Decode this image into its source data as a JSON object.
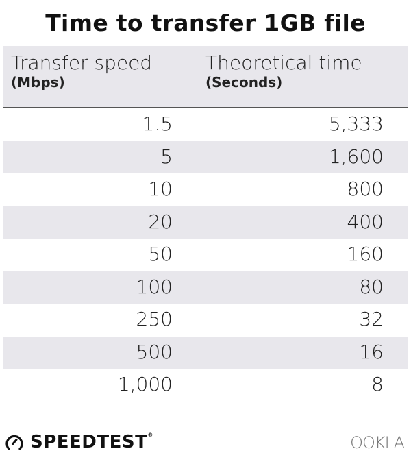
{
  "chart_data": {
    "type": "table",
    "title": "Time to transfer 1GB file",
    "columns": [
      {
        "label": "Transfer speed",
        "unit": "(Mbps)"
      },
      {
        "label": "Theoretical time",
        "unit": "(Seconds)"
      }
    ],
    "rows": [
      [
        "1.5",
        "5,333"
      ],
      [
        "5",
        "1,600"
      ],
      [
        "10",
        "800"
      ],
      [
        "20",
        "400"
      ],
      [
        "50",
        "160"
      ],
      [
        "100",
        "80"
      ],
      [
        "250",
        "32"
      ],
      [
        "500",
        "16"
      ],
      [
        "1,000",
        "8"
      ]
    ],
    "row_stripe_color": "#e8e7ec"
  },
  "footer": {
    "brand": "SPEEDTEST",
    "brand_mark": "®",
    "logo_right": "OOKLA"
  }
}
